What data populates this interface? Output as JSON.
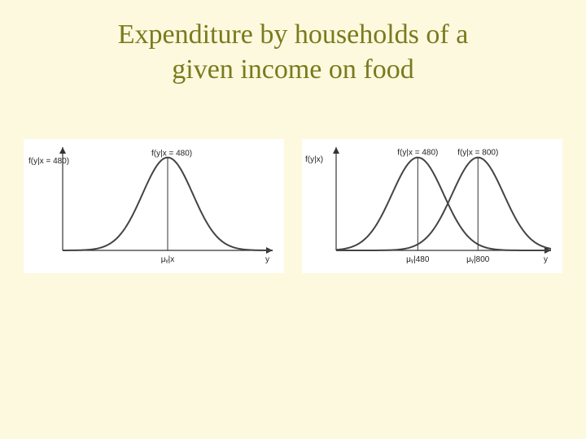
{
  "slide": {
    "title_line1": "Expenditure by households of a",
    "title_line2": "given income on food",
    "title_color": "#7a7a1e",
    "background_color": "#fcf9de"
  },
  "chart_left": {
    "type": "line",
    "panel_bg": "#ffffff",
    "axis_color": "#333333",
    "curve_color": "#444444",
    "line_width": 2,
    "y_label": "f(y|x = 480)",
    "curve_label": "f(y|x = 480)",
    "x_tick_label": "μᵧ|x",
    "x_end_label": "y",
    "curves": [
      {
        "mu": 0.5,
        "sigma": 0.12,
        "height": 0.9
      }
    ],
    "xlim": [
      0,
      1
    ],
    "ylim": [
      0,
      1
    ]
  },
  "chart_right": {
    "type": "line",
    "panel_bg": "#ffffff",
    "axis_color": "#333333",
    "curve_color": "#444444",
    "line_width": 2,
    "y_label": "f(y|x)",
    "curve_labels": [
      "f(y|x = 480)",
      "f(y|x = 800)"
    ],
    "x_tick_labels": [
      "μᵧ|480",
      "μᵧ|800"
    ],
    "x_end_label": "y",
    "curves": [
      {
        "mu": 0.38,
        "sigma": 0.12,
        "height": 0.9
      },
      {
        "mu": 0.66,
        "sigma": 0.12,
        "height": 0.9
      }
    ],
    "xlim": [
      0,
      1
    ],
    "ylim": [
      0,
      1
    ]
  }
}
